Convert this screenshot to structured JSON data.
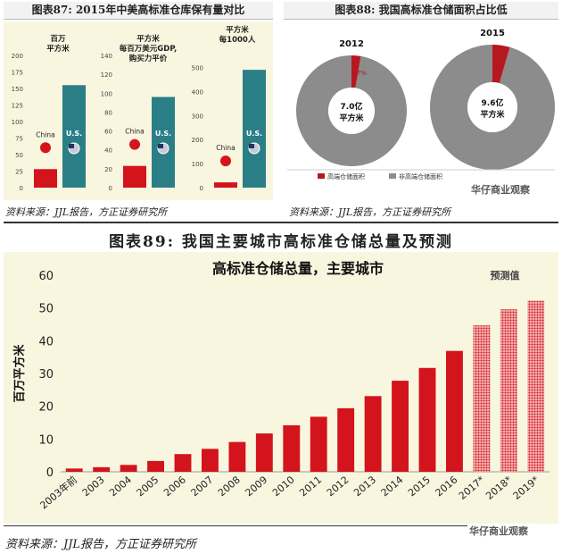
{
  "fig87": {
    "title": "图表87:   2015年中美高标准仓库保有量对比",
    "source": "资料来源：JJL报告，方正证券研究所",
    "charts": [
      {
        "unit_label": [
          "百万",
          "平方米"
        ],
        "ticks": [
          0,
          25,
          50,
          75,
          100,
          125,
          150,
          175,
          200
        ],
        "max": 200,
        "china": 28,
        "us": 155,
        "china_label": "China",
        "us_label": "U.S."
      },
      {
        "unit_label": [
          "平方米",
          "每百万美元GDP,",
          "购买力平价"
        ],
        "ticks": [
          0,
          20,
          40,
          60,
          80,
          100,
          120,
          140
        ],
        "max": 140,
        "china": 23,
        "us": 96,
        "china_label": "China",
        "us_label": "U.S."
      },
      {
        "unit_label": [
          "平方米",
          "每1000人"
        ],
        "ticks": [
          0,
          100,
          200,
          300,
          400,
          500
        ],
        "max": 550,
        "china": 22,
        "us": 490,
        "china_label": "China",
        "us_label": "U.S."
      }
    ]
  },
  "fig88": {
    "title": "图表88:    我国高标准仓储面积占比低",
    "source": "资料来源：JJL报告，方正证券研究所",
    "donuts": [
      {
        "year": "2012",
        "high_pct": 2.7,
        "pct_label": "2.7%",
        "center": [
          "7.0亿",
          "平方米"
        ]
      },
      {
        "year": "2015",
        "high_pct": 4.5,
        "pct_label": "",
        "center": [
          "9.6亿",
          "平方米"
        ]
      }
    ],
    "legend": [
      {
        "label": "高端仓储面积",
        "color": "#b5191f"
      },
      {
        "label": "非高端仓储面积",
        "color": "#8c8c8c"
      }
    ]
  },
  "fig89": {
    "title": "图表89:   我国主要城市高标准仓储总量及预测",
    "source": "资料来源：JJL报告，方正证券研究所",
    "forecast_label": "预测值"
  },
  "watermark_text": "华仔商业观察",
  "chart_data": {
    "type": "bar",
    "title": "高标准仓储总量，主要城市",
    "ylabel": "百万平方米",
    "xlabel": "",
    "ylim": [
      0,
      60
    ],
    "yticks": [
      0,
      10,
      20,
      30,
      40,
      50,
      60
    ],
    "grid": false,
    "categories": [
      "2003年前",
      "2003",
      "2004",
      "2005",
      "2006",
      "2007",
      "2008",
      "2009",
      "2010",
      "2011",
      "2012",
      "2013",
      "2014",
      "2015",
      "2016",
      "2017*",
      "2018*",
      "2019*"
    ],
    "values": [
      1.0,
      1.4,
      2.1,
      3.3,
      5.4,
      7.0,
      9.1,
      11.7,
      14.2,
      16.8,
      19.4,
      23.1,
      27.8,
      31.7,
      36.9,
      44.7,
      49.6,
      52.2
    ],
    "forecast_from_index": 15,
    "bar_color": "#d3141c"
  }
}
